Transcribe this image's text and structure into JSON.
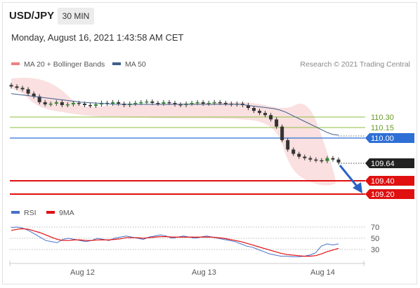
{
  "header": {
    "symbol": "USD/JPY",
    "timeframe": "30 MIN",
    "datetime": "Monday, August 16, 2021 1:43:58 AM CET"
  },
  "legend": {
    "ma20_label": "MA 20 + Bollinger Bands",
    "ma20_color": "#f08080",
    "ma50_label": "MA 50",
    "ma50_color": "#3f5e8c",
    "credit": "Research © 2021 Trading Central"
  },
  "levels": [
    {
      "label": "110.30",
      "kind": "resistance",
      "color": "#8cbf3f"
    },
    {
      "label": "110.15",
      "kind": "resistance",
      "color": "#8cbf3f"
    },
    {
      "label": "110.00",
      "kind": "pivot",
      "color": "#2e6fd6"
    },
    {
      "label": "109.64",
      "kind": "last",
      "color": "#222222"
    },
    {
      "label": "109.40",
      "kind": "support",
      "color": "#e01010"
    },
    {
      "label": "109.20",
      "kind": "support",
      "color": "#e01010"
    }
  ],
  "rsi_legend": {
    "rsi_label": "RSI",
    "rsi_color": "#4a6fc9",
    "ma_label": "9MA",
    "ma_color": "#e01010"
  },
  "rsi_axis": [
    "70",
    "50",
    "30"
  ],
  "x_axis": [
    "Aug 12",
    "Aug 13",
    "Aug 14"
  ],
  "chart_data": {
    "type": "candlestick",
    "y_range_price": [
      109.12,
      110.85
    ],
    "price_series": [
      110.7,
      110.68,
      110.66,
      110.6,
      110.56,
      110.48,
      110.45,
      110.46,
      110.48,
      110.44,
      110.45,
      110.47,
      110.46,
      110.44,
      110.43,
      110.45,
      110.47,
      110.46,
      110.48,
      110.46,
      110.44,
      110.46,
      110.47,
      110.48,
      110.49,
      110.47,
      110.46,
      110.48,
      110.47,
      110.45,
      110.44,
      110.46,
      110.47,
      110.48,
      110.46,
      110.47,
      110.48,
      110.47,
      110.46,
      110.45,
      110.46,
      110.44,
      110.4,
      110.36,
      110.33,
      110.3,
      110.24,
      110.14,
      109.95,
      109.82,
      109.76,
      109.72,
      109.7,
      109.68,
      109.67,
      109.66,
      109.7,
      109.68,
      109.64
    ],
    "ma50": [
      110.6,
      110.59,
      110.58,
      110.57,
      110.56,
      110.55,
      110.54,
      110.53,
      110.52,
      110.51,
      110.5,
      110.49,
      110.48,
      110.475,
      110.47,
      110.465,
      110.46,
      110.455,
      110.45,
      110.45,
      110.45,
      110.45,
      110.45,
      110.45,
      110.45,
      110.45,
      110.45,
      110.45,
      110.45,
      110.45,
      110.45,
      110.45,
      110.45,
      110.45,
      110.45,
      110.45,
      110.45,
      110.45,
      110.45,
      110.45,
      110.44,
      110.43,
      110.42,
      110.41,
      110.4,
      110.39,
      110.37,
      110.34,
      110.3,
      110.26,
      110.22,
      110.18,
      110.14,
      110.1,
      110.06,
      110.03,
      110.02
    ],
    "forecast": {
      "from": 109.64,
      "to": 109.2
    },
    "rsi_series": [
      69,
      70,
      68,
      64,
      58,
      52,
      46,
      44,
      42,
      48,
      50,
      48,
      46,
      44,
      46,
      50,
      48,
      46,
      50,
      52,
      54,
      52,
      50,
      48,
      52,
      54,
      56,
      54,
      50,
      52,
      54,
      52,
      50,
      52,
      54,
      52,
      50,
      48,
      46,
      44,
      40,
      36,
      34,
      30,
      26,
      22,
      20,
      18,
      18,
      17,
      17,
      18,
      20,
      24,
      36,
      40,
      38,
      40
    ],
    "rsi_ma": [
      64,
      66,
      67,
      66,
      63,
      60,
      56,
      52,
      48,
      46,
      46,
      47,
      47,
      46,
      46,
      47,
      47,
      47,
      48,
      49,
      51,
      51,
      51,
      50,
      51,
      52,
      53,
      53,
      52,
      52,
      52,
      52,
      52,
      52,
      52,
      52,
      51,
      50,
      48,
      46,
      44,
      41,
      38,
      35,
      32,
      29,
      26,
      23,
      21,
      20,
      19,
      18,
      18,
      19,
      22,
      26,
      29,
      32
    ]
  }
}
